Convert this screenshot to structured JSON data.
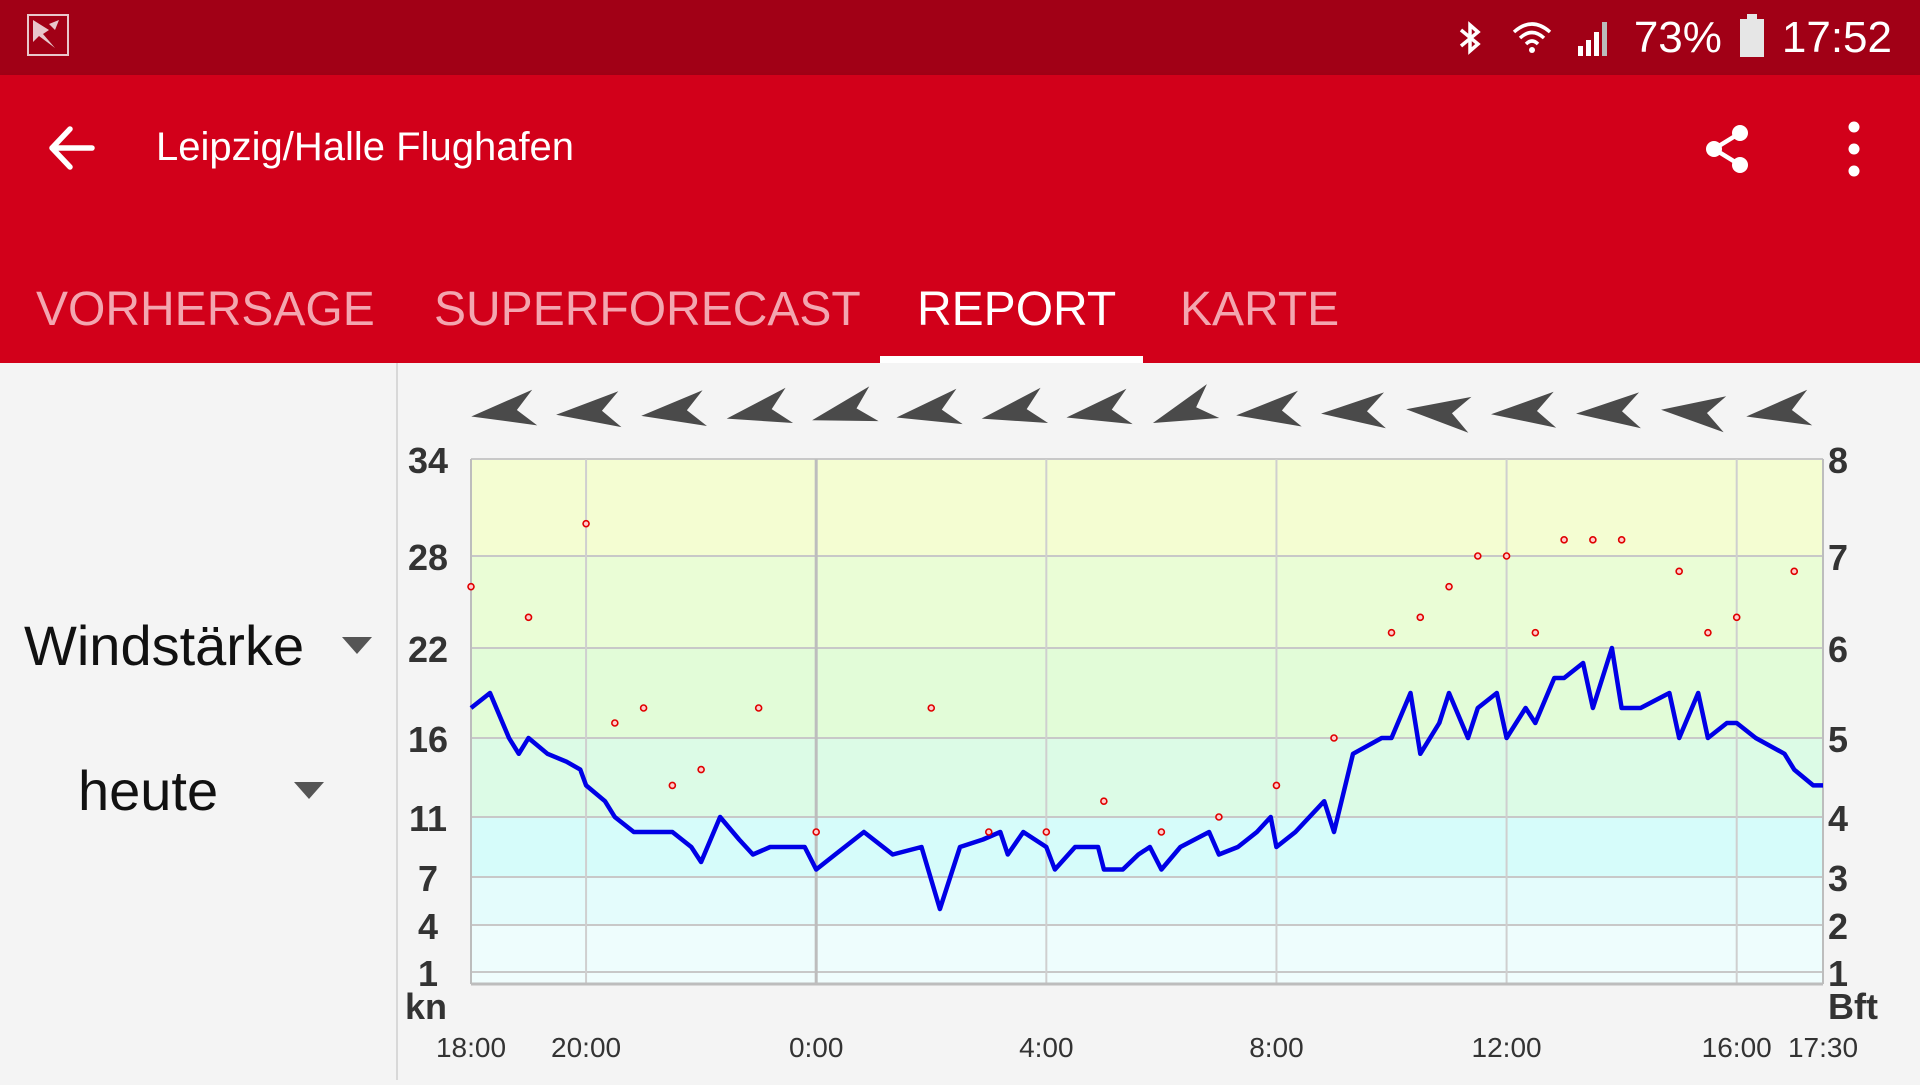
{
  "status_bar": {
    "battery": "73%",
    "time": "17:52",
    "icons": [
      "app-notification-icon",
      "bluetooth-icon",
      "wifi-icon",
      "signal-icon",
      "battery-icon"
    ]
  },
  "app_bar": {
    "title": "Leipzig/Halle Flughafen",
    "back_icon": "back-arrow-icon",
    "share_icon": "share-icon",
    "more_icon": "more-vert-icon",
    "color": "#d2001a"
  },
  "tabs": [
    {
      "label": "VORHERSAGE",
      "active": false
    },
    {
      "label": "SUPERFORECAST",
      "active": false
    },
    {
      "label": "REPORT",
      "active": true
    },
    {
      "label": "KARTE",
      "active": false
    }
  ],
  "controls": {
    "parameter": "Windstärke",
    "period": "heute"
  },
  "chart_data": {
    "type": "line",
    "x_tick_labels": [
      "18:00",
      "20:00",
      "0:00",
      "4:00",
      "8:00",
      "12:00",
      "16:00",
      "17:30"
    ],
    "x_ticks": [
      0,
      2,
      6,
      10,
      14,
      18,
      22,
      23.5
    ],
    "x_range": [
      0,
      23.5
    ],
    "left_axis": {
      "unit_label": "kn",
      "tick_labels": [
        "34",
        "28",
        "22",
        "16",
        "11",
        "7",
        "4",
        "1"
      ]
    },
    "right_axis": {
      "unit_label": "Bft",
      "tick_labels": [
        "8",
        "7",
        "6",
        "5",
        "4",
        "3",
        "2",
        "1"
      ]
    },
    "bands_kn": [
      1,
      4,
      7,
      11,
      16,
      22,
      28,
      34
    ],
    "grid": true,
    "series": [
      {
        "kind": "line",
        "color": "#0000e6",
        "points": [
          [
            0,
            18
          ],
          [
            0.33,
            19
          ],
          [
            0.66,
            16
          ],
          [
            0.83,
            15
          ],
          [
            1,
            16
          ],
          [
            1.33,
            15
          ],
          [
            1.66,
            14.5
          ],
          [
            1.9,
            14
          ],
          [
            2,
            13
          ],
          [
            2.33,
            12
          ],
          [
            2.5,
            11
          ],
          [
            2.83,
            10
          ],
          [
            3.33,
            10
          ],
          [
            3.5,
            10
          ],
          [
            3.83,
            9
          ],
          [
            4,
            8
          ],
          [
            4.33,
            11
          ],
          [
            4.66,
            9.5
          ],
          [
            4.9,
            8.5
          ],
          [
            5.2,
            9
          ],
          [
            5.8,
            9
          ],
          [
            6,
            7.5
          ],
          [
            6.33,
            8.5
          ],
          [
            6.83,
            10
          ],
          [
            7.33,
            8.5
          ],
          [
            7.83,
            9
          ],
          [
            8.15,
            5
          ],
          [
            8.5,
            9
          ],
          [
            8.9,
            9.5
          ],
          [
            9.2,
            10
          ],
          [
            9.33,
            8.5
          ],
          [
            9.6,
            10
          ],
          [
            10,
            9
          ],
          [
            10.15,
            7.5
          ],
          [
            10.5,
            9
          ],
          [
            10.9,
            9
          ],
          [
            11,
            7.5
          ],
          [
            11.33,
            7.5
          ],
          [
            11.6,
            8.5
          ],
          [
            11.8,
            9
          ],
          [
            12,
            7.5
          ],
          [
            12.33,
            9
          ],
          [
            12.83,
            10
          ],
          [
            13,
            8.5
          ],
          [
            13.33,
            9
          ],
          [
            13.66,
            10
          ],
          [
            13.9,
            11
          ],
          [
            14,
            9
          ],
          [
            14.33,
            10
          ],
          [
            14.83,
            12
          ],
          [
            15,
            10
          ],
          [
            15.33,
            15
          ],
          [
            15.83,
            16
          ],
          [
            16,
            16
          ],
          [
            16.33,
            19
          ],
          [
            16.5,
            15
          ],
          [
            16.83,
            17
          ],
          [
            17,
            19
          ],
          [
            17.33,
            16
          ],
          [
            17.5,
            18
          ],
          [
            17.83,
            19
          ],
          [
            18,
            16
          ],
          [
            18.33,
            18
          ],
          [
            18.5,
            17
          ],
          [
            18.83,
            20
          ],
          [
            19,
            20
          ],
          [
            19.33,
            21
          ],
          [
            19.5,
            18
          ],
          [
            19.83,
            22
          ],
          [
            20,
            18
          ],
          [
            20.33,
            18
          ],
          [
            20.83,
            19
          ],
          [
            21,
            16
          ],
          [
            21.33,
            19
          ],
          [
            21.5,
            16
          ],
          [
            21.83,
            17
          ],
          [
            22,
            17
          ],
          [
            22.33,
            16
          ],
          [
            22.83,
            15
          ],
          [
            23,
            14
          ],
          [
            23.33,
            13
          ],
          [
            23.5,
            13
          ]
        ]
      },
      {
        "kind": "gusts",
        "color": "#e00000",
        "points": [
          [
            0,
            26
          ],
          [
            1,
            24
          ],
          [
            2,
            30
          ],
          [
            2.5,
            17
          ],
          [
            3,
            18
          ],
          [
            3.5,
            13
          ],
          [
            4,
            14
          ],
          [
            5,
            18
          ],
          [
            6,
            10
          ],
          [
            8,
            18
          ],
          [
            9,
            10
          ],
          [
            10,
            10
          ],
          [
            11,
            12
          ],
          [
            12,
            10
          ],
          [
            13,
            11
          ],
          [
            14,
            13
          ],
          [
            15,
            16
          ],
          [
            16,
            23
          ],
          [
            16.5,
            24
          ],
          [
            17,
            26
          ],
          [
            17.5,
            28
          ],
          [
            18,
            28
          ],
          [
            18.5,
            23
          ],
          [
            19,
            29
          ],
          [
            19.5,
            29
          ],
          [
            20,
            29
          ],
          [
            21,
            27
          ],
          [
            21.5,
            23
          ],
          [
            22,
            24
          ],
          [
            23,
            27
          ]
        ]
      }
    ],
    "wind_direction_arrows": {
      "color": "#4a4a4a",
      "angles_deg": [
        -8,
        -5,
        -7,
        -12,
        -15,
        -10,
        -12,
        -10,
        -20,
        -6,
        -3,
        5,
        -4,
        -3,
        4,
        -8
      ]
    }
  }
}
